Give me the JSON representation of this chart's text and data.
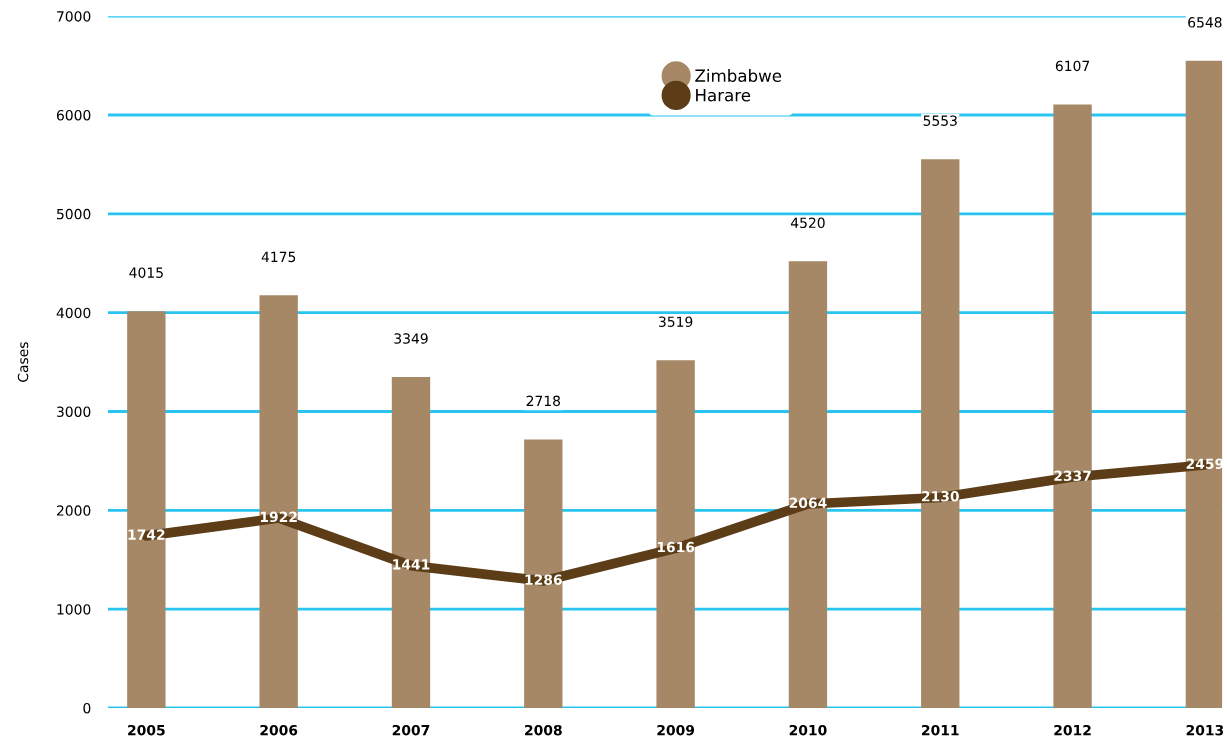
{
  "chart_data": {
    "type": "bar",
    "ylabel": "Cases",
    "categories": [
      "2005",
      "2006",
      "2007",
      "2008",
      "2009",
      "2010",
      "2011",
      "2012",
      "2013"
    ],
    "series": [
      {
        "name": "Zimbabwe",
        "color": "#a68867",
        "values": [
          4015,
          4175,
          3349,
          2718,
          3519,
          4520,
          5553,
          6107,
          6548
        ]
      },
      {
        "name": "Harare",
        "type": "line",
        "color": "#5c3d17",
        "values": [
          1742,
          1922,
          1441,
          1286,
          1616,
          2064,
          2130,
          2337,
          2459
        ]
      }
    ],
    "ylim": [
      0,
      7000
    ],
    "yticks": [
      0,
      1000,
      2000,
      3000,
      4000,
      5000,
      6000,
      7000
    ],
    "grid": "y",
    "legend": "top",
    "data_labels": true,
    "marker": "none",
    "line_style": "solid"
  }
}
